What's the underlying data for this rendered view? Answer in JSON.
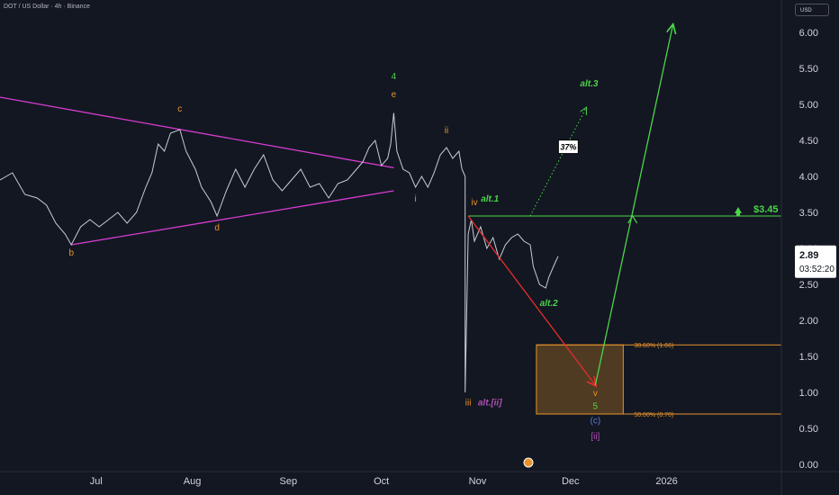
{
  "header": {
    "symbol_line": "DOT / US Dollar · 4h · Binance",
    "currency_button": "USD"
  },
  "colors": {
    "background": "#131722",
    "text": "#d1d4dc",
    "price_line": "#c9ccd4",
    "orange": "#e8932a",
    "green": "#4cd44a",
    "magenta": "#d63cd0",
    "red": "#e82c2c",
    "purple": "#b04fb4",
    "blue": "#5c7fd6",
    "gold_zone": "#5a4222"
  },
  "chart_data": {
    "type": "line",
    "x_ticks": [
      "Jul",
      "Aug",
      "Sep",
      "Oct",
      "Nov",
      "Dec",
      "2026"
    ],
    "y_ticks": [
      "0.00",
      "0.50",
      "1.00",
      "1.50",
      "2.00",
      "2.50",
      "3.00",
      "3.50",
      "4.00",
      "4.50",
      "5.00",
      "5.50",
      "6.00"
    ],
    "ylim": [
      -0.1,
      6.45
    ],
    "x_domain": [
      "2025-05-31",
      "2026-02-07"
    ],
    "series": [
      {
        "points": [
          [
            "2025-05-31",
            3.95
          ],
          [
            "2025-06-04",
            4.05
          ],
          [
            "2025-06-08",
            3.75
          ],
          [
            "2025-06-12",
            3.7
          ],
          [
            "2025-06-15",
            3.6
          ],
          [
            "2025-06-18",
            3.35
          ],
          [
            "2025-06-21",
            3.2
          ],
          [
            "2025-06-23",
            3.05
          ],
          [
            "2025-06-26",
            3.3
          ],
          [
            "2025-06-29",
            3.4
          ],
          [
            "2025-07-02",
            3.3
          ],
          [
            "2025-07-05",
            3.4
          ],
          [
            "2025-07-08",
            3.5
          ],
          [
            "2025-07-11",
            3.35
          ],
          [
            "2025-07-14",
            3.5
          ],
          [
            "2025-07-17",
            3.85
          ],
          [
            "2025-07-19",
            4.05
          ],
          [
            "2025-07-21",
            4.45
          ],
          [
            "2025-07-23",
            4.35
          ],
          [
            "2025-07-25",
            4.6
          ],
          [
            "2025-07-28",
            4.65
          ],
          [
            "2025-07-30",
            4.35
          ],
          [
            "2025-08-02",
            4.1
          ],
          [
            "2025-08-04",
            3.85
          ],
          [
            "2025-08-07",
            3.65
          ],
          [
            "2025-08-09",
            3.45
          ],
          [
            "2025-08-12",
            3.8
          ],
          [
            "2025-08-15",
            4.1
          ],
          [
            "2025-08-18",
            3.85
          ],
          [
            "2025-08-21",
            4.1
          ],
          [
            "2025-08-24",
            4.3
          ],
          [
            "2025-08-27",
            3.95
          ],
          [
            "2025-08-30",
            3.8
          ],
          [
            "2025-09-02",
            3.95
          ],
          [
            "2025-09-05",
            4.1
          ],
          [
            "2025-09-08",
            3.85
          ],
          [
            "2025-09-11",
            3.9
          ],
          [
            "2025-09-14",
            3.7
          ],
          [
            "2025-09-17",
            3.9
          ],
          [
            "2025-09-20",
            3.95
          ],
          [
            "2025-09-23",
            4.1
          ],
          [
            "2025-09-25",
            4.2
          ],
          [
            "2025-09-27",
            4.4
          ],
          [
            "2025-09-29",
            4.5
          ],
          [
            "2025-10-01",
            4.15
          ],
          [
            "2025-10-03",
            4.25
          ],
          [
            "2025-10-04",
            4.45
          ],
          [
            "2025-10-05",
            4.88
          ],
          [
            "2025-10-06",
            4.35
          ],
          [
            "2025-10-08",
            4.1
          ],
          [
            "2025-10-10",
            4.05
          ],
          [
            "2025-10-12",
            3.85
          ],
          [
            "2025-10-14",
            4.0
          ],
          [
            "2025-10-16",
            3.85
          ],
          [
            "2025-10-18",
            4.05
          ],
          [
            "2025-10-20",
            4.3
          ],
          [
            "2025-10-22",
            4.4
          ],
          [
            "2025-10-24",
            4.25
          ],
          [
            "2025-10-26",
            4.35
          ],
          [
            "2025-10-27",
            4.1
          ],
          [
            "2025-10-28",
            4.0
          ],
          [
            "2025-10-28",
            1.0
          ],
          [
            "2025-10-29",
            3.2
          ],
          [
            "2025-10-30",
            3.4
          ],
          [
            "2025-10-31",
            3.1
          ],
          [
            "2025-11-02",
            3.3
          ],
          [
            "2025-11-04",
            3.0
          ],
          [
            "2025-11-06",
            3.15
          ],
          [
            "2025-11-08",
            2.85
          ],
          [
            "2025-11-10",
            3.05
          ],
          [
            "2025-11-12",
            3.15
          ],
          [
            "2025-11-14",
            3.2
          ],
          [
            "2025-11-16",
            3.1
          ],
          [
            "2025-11-18",
            3.05
          ],
          [
            "2025-11-19",
            2.75
          ],
          [
            "2025-11-21",
            2.5
          ],
          [
            "2025-11-23",
            2.45
          ],
          [
            "2025-11-24",
            2.6
          ],
          [
            "2025-11-26",
            2.8
          ],
          [
            "2025-11-27",
            2.89
          ]
        ]
      }
    ],
    "current_price": "2.89",
    "countdown": "03:52:20",
    "target_label": "$3.45",
    "level_3_45": 3.45,
    "fib_zone": {
      "top": 1.66,
      "bottom": 0.7,
      "top_label": "38.60% (1.66)",
      "bottom_label": "50.00% (0.70)",
      "start": "2025-11-20",
      "end": "2025-12-18"
    },
    "triangle_lines": [
      {
        "from": [
          "2025-05-31",
          5.1
        ],
        "to": [
          "2025-10-05",
          4.12
        ]
      },
      {
        "from": [
          "2025-06-23",
          3.05
        ],
        "to": [
          "2025-10-05",
          3.8
        ]
      }
    ],
    "projections": [
      {
        "kind": "red",
        "from": [
          "2025-10-29",
          3.45
        ],
        "to": [
          "2025-12-09",
          1.1
        ]
      },
      {
        "kind": "green",
        "from": [
          "2025-12-09",
          1.1
        ],
        "to": [
          "2026-01-03",
          6.1
        ]
      },
      {
        "kind": "dotted",
        "from": [
          "2025-11-18",
          3.45
        ],
        "to": [
          "2025-12-06",
          4.95
        ]
      }
    ],
    "annotations": [
      {
        "text": "b",
        "at": [
          "2025-06-23",
          2.9
        ],
        "color": "orange"
      },
      {
        "text": "c",
        "at": [
          "2025-07-28",
          4.9
        ],
        "color": "orange"
      },
      {
        "text": "d",
        "at": [
          "2025-08-09",
          3.25
        ],
        "color": "orange"
      },
      {
        "text": "4",
        "at": [
          "2025-10-05",
          5.35
        ],
        "color": "green"
      },
      {
        "text": "e",
        "at": [
          "2025-10-05",
          5.1
        ],
        "color": "orange"
      },
      {
        "text": "i",
        "at": [
          "2025-10-12",
          3.65
        ],
        "color": "orange"
      },
      {
        "text": "ii",
        "at": [
          "2025-10-22",
          4.6
        ],
        "color": "orange"
      },
      {
        "text": "iii",
        "at": [
          "2025-10-29",
          0.82
        ],
        "color": "orange"
      },
      {
        "text": "alt.[ii]",
        "at": [
          "2025-11-05",
          0.82
        ],
        "color": "purple"
      },
      {
        "text": "iv",
        "at": [
          "2025-10-31",
          3.6
        ],
        "color": "orange"
      },
      {
        "text": "alt.1",
        "at": [
          "2025-11-05",
          3.65
        ],
        "color": "green"
      },
      {
        "text": "alt.2",
        "at": [
          "2025-11-24",
          2.2
        ],
        "color": "green"
      },
      {
        "text": "alt.3",
        "at": [
          "2025-12-07",
          5.25
        ],
        "color": "green"
      },
      {
        "text": "37%",
        "at": [
          "2025-11-30",
          4.38
        ],
        "color": "white"
      },
      {
        "text": "v",
        "at": [
          "2025-12-09",
          0.95
        ],
        "color": "orange"
      },
      {
        "text": "5",
        "at": [
          "2025-12-09",
          0.77
        ],
        "color": "green"
      },
      {
        "text": "(c)",
        "at": [
          "2025-12-09",
          0.57
        ],
        "color": "blue"
      },
      {
        "text": "[ii]",
        "at": [
          "2025-12-09",
          0.35
        ],
        "color": "purple"
      }
    ]
  }
}
